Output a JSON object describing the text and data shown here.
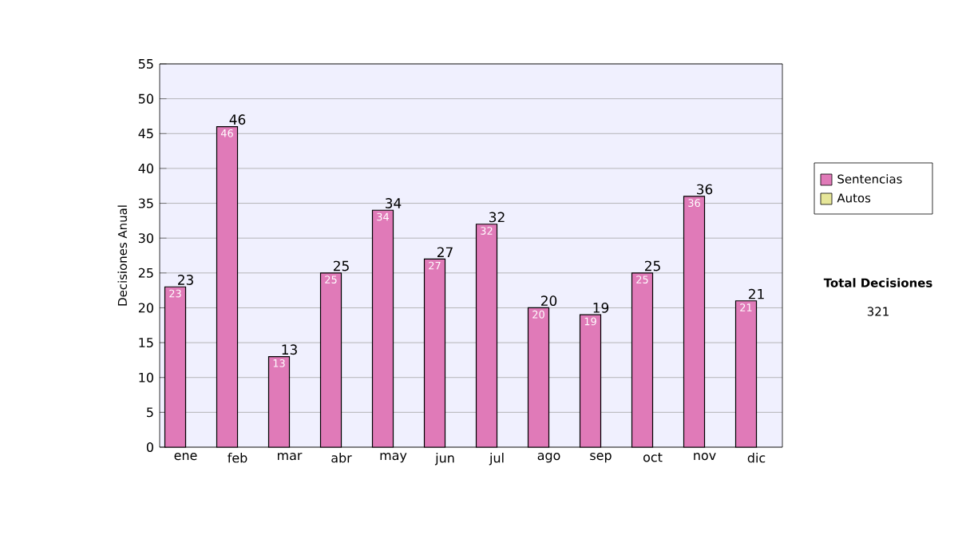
{
  "chart_data": {
    "type": "bar",
    "ylabel": "Decisiones Anual",
    "categories": [
      "ene",
      "feb",
      "mar",
      "abr",
      "may",
      "jun",
      "jul",
      "ago",
      "sep",
      "oct",
      "nov",
      "dic"
    ],
    "series": [
      {
        "name": "Sentencias",
        "color": "#e07ab8",
        "values": [
          23,
          46,
          13,
          25,
          34,
          27,
          32,
          20,
          19,
          25,
          36,
          21
        ]
      },
      {
        "name": "Autos",
        "color": "#e6e699",
        "values": [
          null,
          null,
          null,
          null,
          null,
          null,
          null,
          null,
          null,
          null,
          null,
          null
        ]
      }
    ],
    "ylim": [
      0,
      55
    ],
    "yticks": [
      0,
      5,
      10,
      15,
      20,
      25,
      30,
      35,
      40,
      45,
      50,
      55
    ],
    "totals": [
      "23",
      "46",
      "13",
      "25",
      "34",
      "27",
      "32",
      "20",
      "19",
      "25",
      "36",
      "21"
    ],
    "grid": "y",
    "legend": "right",
    "data_labels": true,
    "annotations": [
      "Total Decisiones",
      "321"
    ]
  }
}
